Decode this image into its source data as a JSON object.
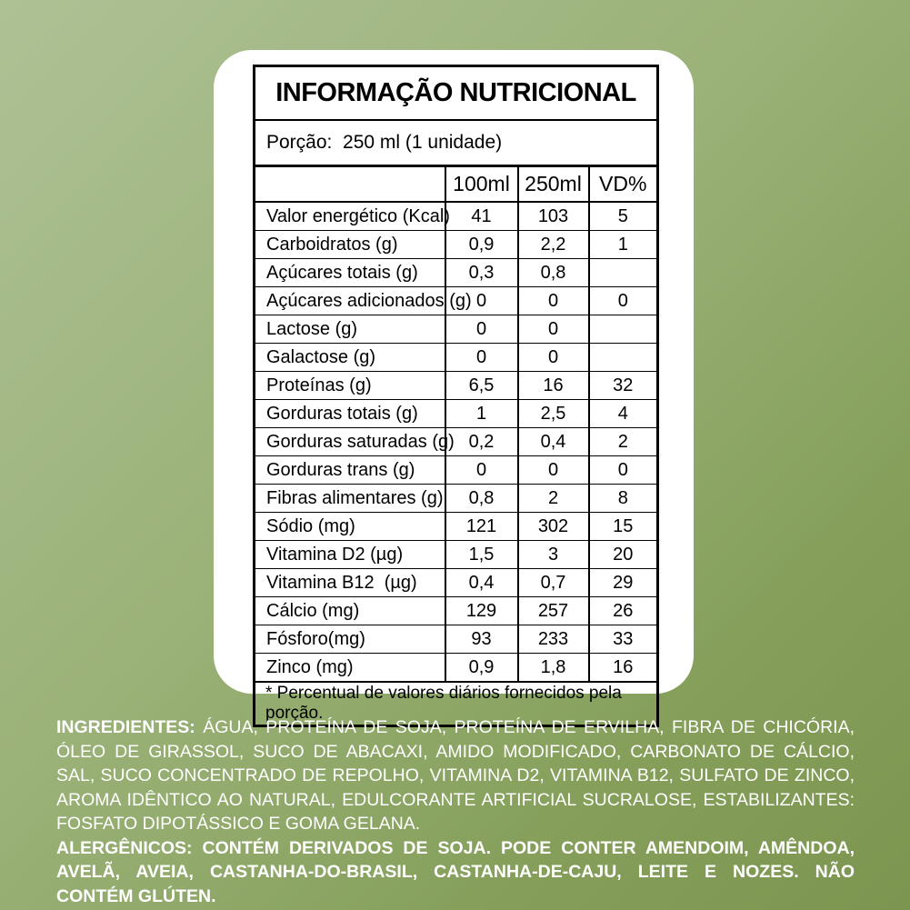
{
  "background": {
    "gradient_start": "#aec195",
    "gradient_end": "#7c9650",
    "card_color": "#ffffff",
    "table_line_color": "#000000",
    "bottom_text_color": "#ffffff"
  },
  "label_card": {
    "title": "INFORMAÇÃO NUTRICIONAL",
    "serving_label": "Porção:  250 ml (1 unidade)",
    "columns": [
      "100ml",
      "250ml",
      "VD%"
    ],
    "rows": [
      {
        "label": "Valor energético (Kcal)",
        "v100": "41",
        "v250": "103",
        "vd": "5"
      },
      {
        "label": "Carboidratos (g)",
        "v100": "0,9",
        "v250": "2,2",
        "vd": "1"
      },
      {
        "label": "Açúcares totais (g)",
        "v100": "0,3",
        "v250": "0,8",
        "vd": ""
      },
      {
        "label": "Açúcares adicionados (g)",
        "v100": "0",
        "v250": "0",
        "vd": "0"
      },
      {
        "label": "Lactose (g)",
        "v100": "0",
        "v250": "0",
        "vd": ""
      },
      {
        "label": "Galactose (g)",
        "v100": "0",
        "v250": "0",
        "vd": ""
      },
      {
        "label": "Proteínas (g)",
        "v100": "6,5",
        "v250": "16",
        "vd": "32"
      },
      {
        "label": "Gorduras totais (g)",
        "v100": "1",
        "v250": "2,5",
        "vd": "4"
      },
      {
        "label": "Gorduras saturadas (g)",
        "v100": "0,2",
        "v250": "0,4",
        "vd": "2"
      },
      {
        "label": "Gorduras trans (g)",
        "v100": "0",
        "v250": "0",
        "vd": "0"
      },
      {
        "label": "Fibras alimentares (g)",
        "v100": "0,8",
        "v250": "2",
        "vd": "8"
      },
      {
        "label": "Sódio (mg)",
        "v100": "121",
        "v250": "302",
        "vd": "15"
      },
      {
        "label": "Vitamina D2 (µg)",
        "v100": "1,5",
        "v250": "3",
        "vd": "20"
      },
      {
        "label": "Vitamina B12  (µg)",
        "v100": "0,4",
        "v250": "0,7",
        "vd": "29"
      },
      {
        "label": "Cálcio (mg)",
        "v100": "129",
        "v250": "257",
        "vd": "26"
      },
      {
        "label": "Fósforo(mg)",
        "v100": "93",
        "v250": "233",
        "vd": "33"
      },
      {
        "label": "Zinco (mg)",
        "v100": "0,9",
        "v250": "1,8",
        "vd": "16"
      }
    ],
    "footnote": "* Percentual de valores diários fornecidos pela porção."
  },
  "ingredients": {
    "label": "INGREDIENTES:",
    "text": "ÁGUA, PROTEÍNA DE SOJA, PROTEÍNA DE ERVILHA, FIBRA DE CHICÓRIA, ÓLEO DE GIRASSOL, SUCO DE ABACAXI, AMIDO MODIFICADO, CARBONATO DE CÁLCIO, SAL, SUCO CONCENTRADO DE REPOLHO, VITAMINA D2, VITAMINA B12, SULFATO DE ZINCO, AROMA IDÊNTICO AO NATURAL, EDULCORANTE ARTIFICIAL SUCRALOSE, ESTABILIZANTES: FOSFATO DIPOTÁSSICO E GOMA GELANA."
  },
  "allergens": {
    "label": "ALERGÊNICOS:",
    "text": "CONTÉM DERIVADOS DE SOJA. PODE CONTER AMENDOIM, AMÊNDOA, AVELÃ, AVEIA, CASTANHA-DO-BRASIL, CASTANHA-DE-CAJU, LEITE E NOZES. NÃO CONTÉM GLÚTEN."
  }
}
